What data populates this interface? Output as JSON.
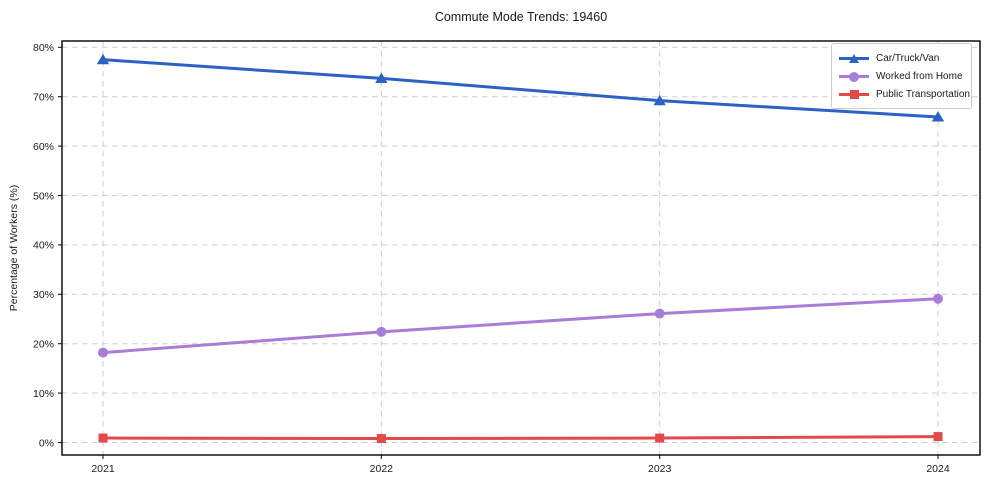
{
  "title": "Commute Mode Trends: 19460",
  "axes": {
    "y_label": "Percentage of Workers (%)",
    "y_ticks": [
      "0%",
      "10%",
      "20%",
      "30%",
      "40%",
      "50%",
      "60%",
      "70%",
      "80%"
    ],
    "x_ticks": [
      "2021",
      "2022",
      "2023",
      "2024"
    ]
  },
  "legend": {
    "items": [
      {
        "label": "Car/Truck/Van",
        "color": "#2b62c4",
        "marker": "triangle"
      },
      {
        "label": "Worked from Home",
        "color": "#a87dd8",
        "marker": "circle"
      },
      {
        "label": "Public Transportation",
        "color": "#e04a4a",
        "marker": "square"
      }
    ]
  },
  "chart_data": {
    "type": "line",
    "title": "Commute Mode Trends: 19460",
    "xlabel": "",
    "ylabel": "Percentage of Workers (%)",
    "categories": [
      2021,
      2022,
      2023,
      2024
    ],
    "series": [
      {
        "name": "Car/Truck/Van",
        "values": [
          77.5,
          73.7,
          69.2,
          65.9
        ],
        "color": "#2b62c4",
        "marker": "triangle"
      },
      {
        "name": "Worked from Home",
        "values": [
          18.2,
          22.4,
          26.1,
          29.1
        ],
        "color": "#a87dd8",
        "marker": "circle"
      },
      {
        "name": "Public Transportation",
        "values": [
          0.9,
          0.8,
          0.9,
          1.2
        ],
        "color": "#e04a4a",
        "marker": "square"
      }
    ],
    "ylim": [
      0,
      80
    ],
    "y_tick_step": 10,
    "grid": true,
    "grid_style": "dashed",
    "grid_color": "#cdcdcd",
    "legend_position": "upper right"
  }
}
